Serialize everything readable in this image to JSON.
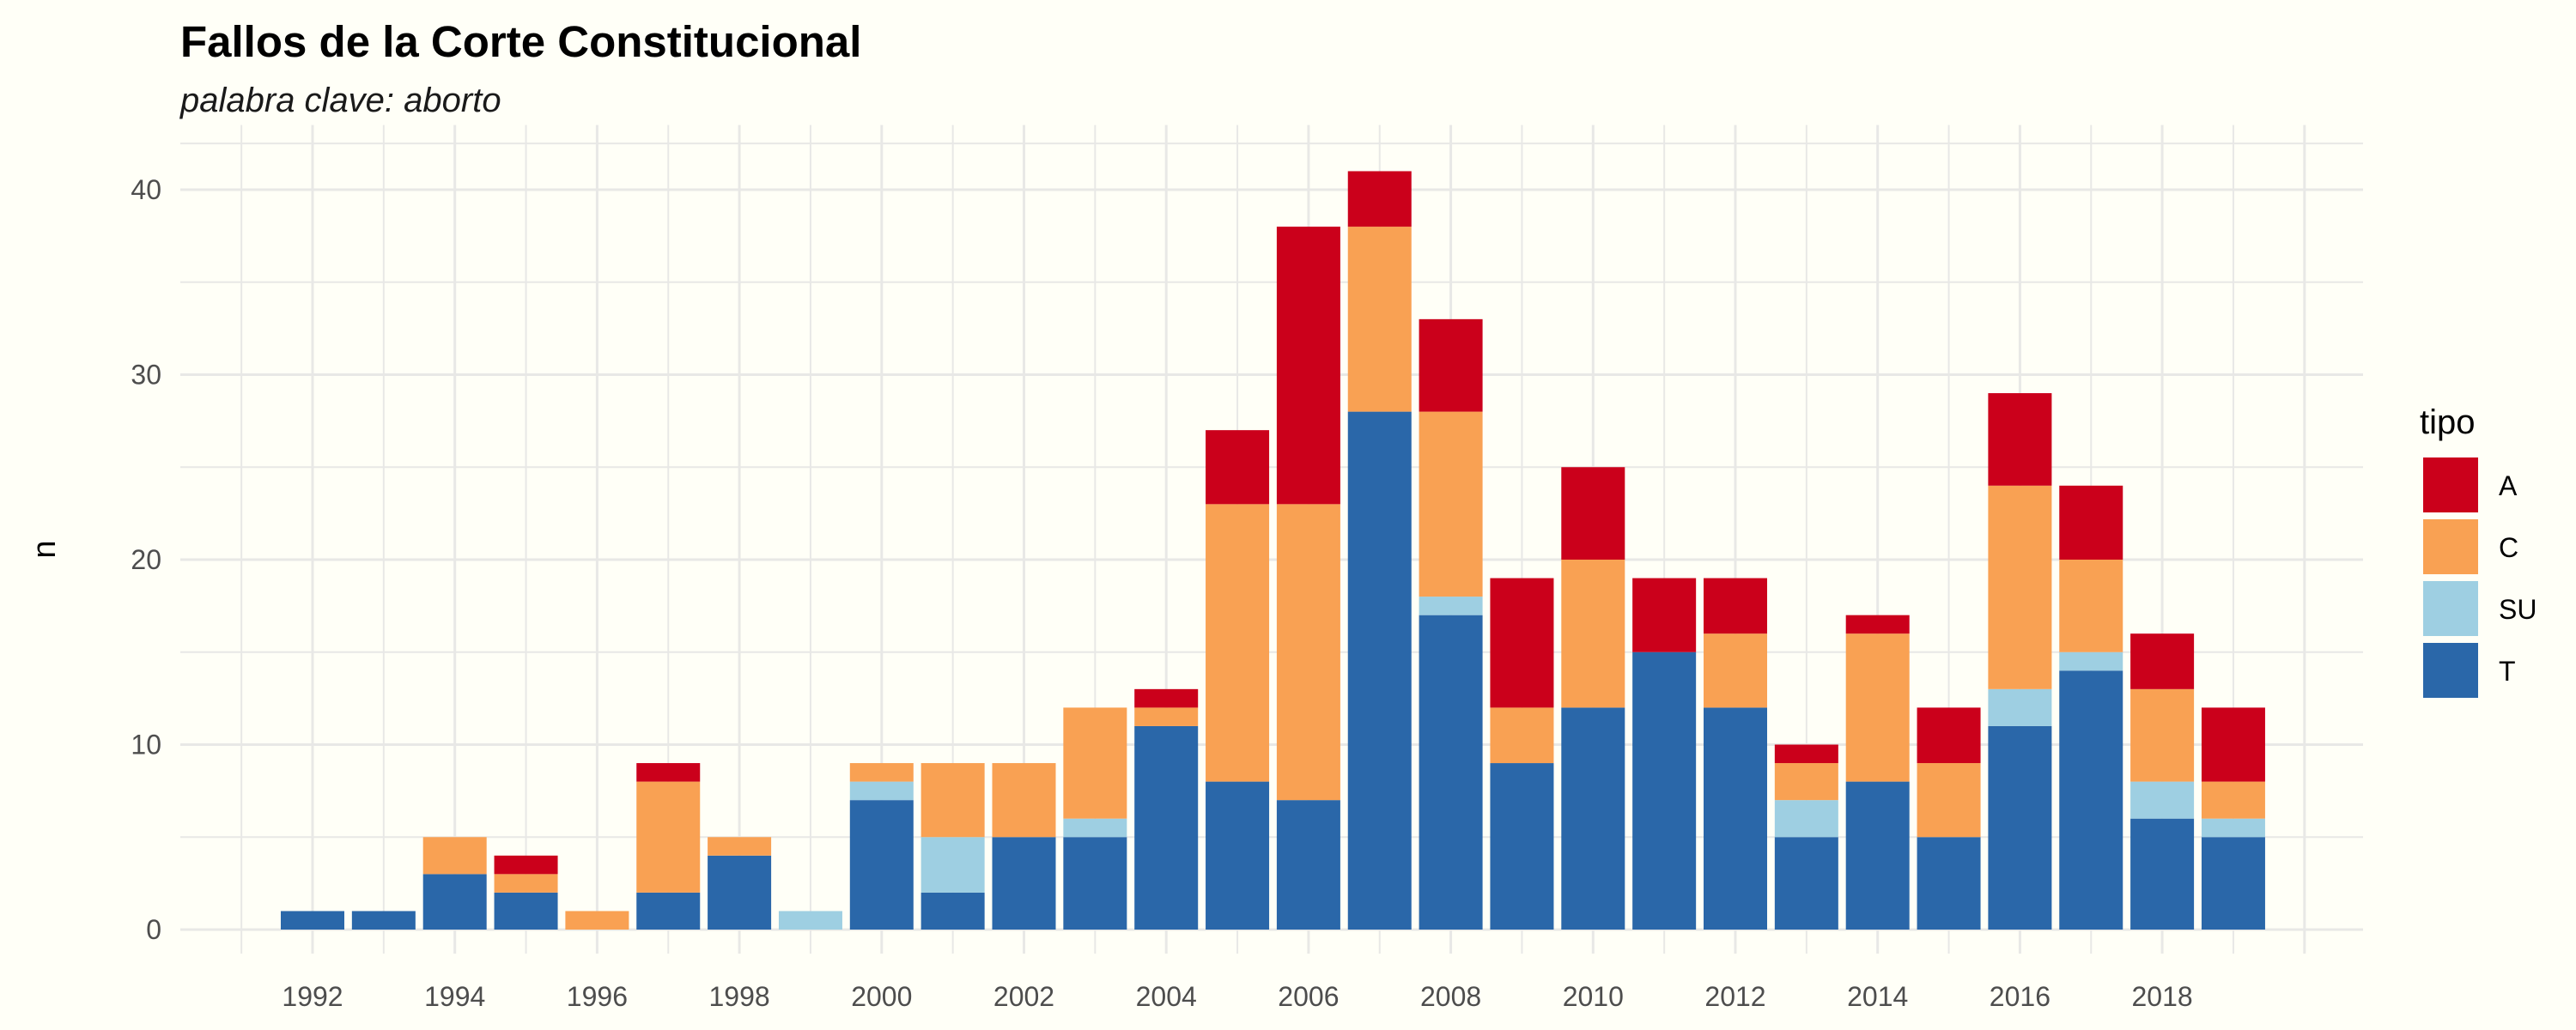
{
  "chart_data": {
    "type": "bar",
    "stacked": true,
    "title": "Fallos de la Corte Constitucional",
    "subtitle": "palabra clave: aborto",
    "xlabel": "",
    "ylabel": "n",
    "ylim": [
      0,
      42
    ],
    "y_ticks": [
      0,
      10,
      20,
      30,
      40
    ],
    "x_ticks": [
      "1992",
      "1994",
      "1996",
      "1998",
      "2000",
      "2002",
      "2004",
      "2006",
      "2008",
      "2010",
      "2012",
      "2014",
      "2016",
      "2018"
    ],
    "grid": true,
    "legend_title": "tipo",
    "legend_position": "right",
    "categories": [
      1992,
      1993,
      1994,
      1995,
      1996,
      1997,
      1998,
      1999,
      2000,
      2001,
      2002,
      2003,
      2004,
      2005,
      2006,
      2007,
      2008,
      2009,
      2010,
      2011,
      2012,
      2013,
      2014,
      2015,
      2016,
      2017,
      2018,
      2019
    ],
    "series": [
      {
        "name": "T",
        "color": "#2A67A9",
        "values": [
          1,
          1,
          3,
          2,
          0,
          2,
          4,
          0,
          7,
          2,
          5,
          5,
          11,
          8,
          7,
          28,
          17,
          9,
          12,
          15,
          12,
          5,
          8,
          5,
          11,
          14,
          6,
          5
        ]
      },
      {
        "name": "SU",
        "color": "#9ECFE2",
        "values": [
          0,
          0,
          0,
          0,
          0,
          0,
          0,
          1,
          1,
          3,
          0,
          1,
          0,
          0,
          0,
          0,
          1,
          0,
          0,
          0,
          0,
          2,
          0,
          0,
          2,
          1,
          2,
          1
        ]
      },
      {
        "name": "C",
        "color": "#F9A153",
        "values": [
          0,
          0,
          2,
          1,
          1,
          6,
          1,
          0,
          1,
          4,
          4,
          6,
          1,
          15,
          16,
          10,
          10,
          3,
          8,
          0,
          4,
          2,
          8,
          4,
          11,
          5,
          5,
          2
        ]
      },
      {
        "name": "A",
        "color": "#CB001B",
        "values": [
          0,
          0,
          0,
          1,
          0,
          1,
          0,
          0,
          0,
          0,
          0,
          0,
          1,
          4,
          15,
          3,
          5,
          7,
          5,
          4,
          3,
          1,
          1,
          3,
          5,
          4,
          3,
          4
        ]
      }
    ],
    "legend_order": [
      "A",
      "C",
      "SU",
      "T"
    ]
  },
  "colors": {
    "background": "#FFFFF7",
    "grid": "#E8E8E6"
  }
}
